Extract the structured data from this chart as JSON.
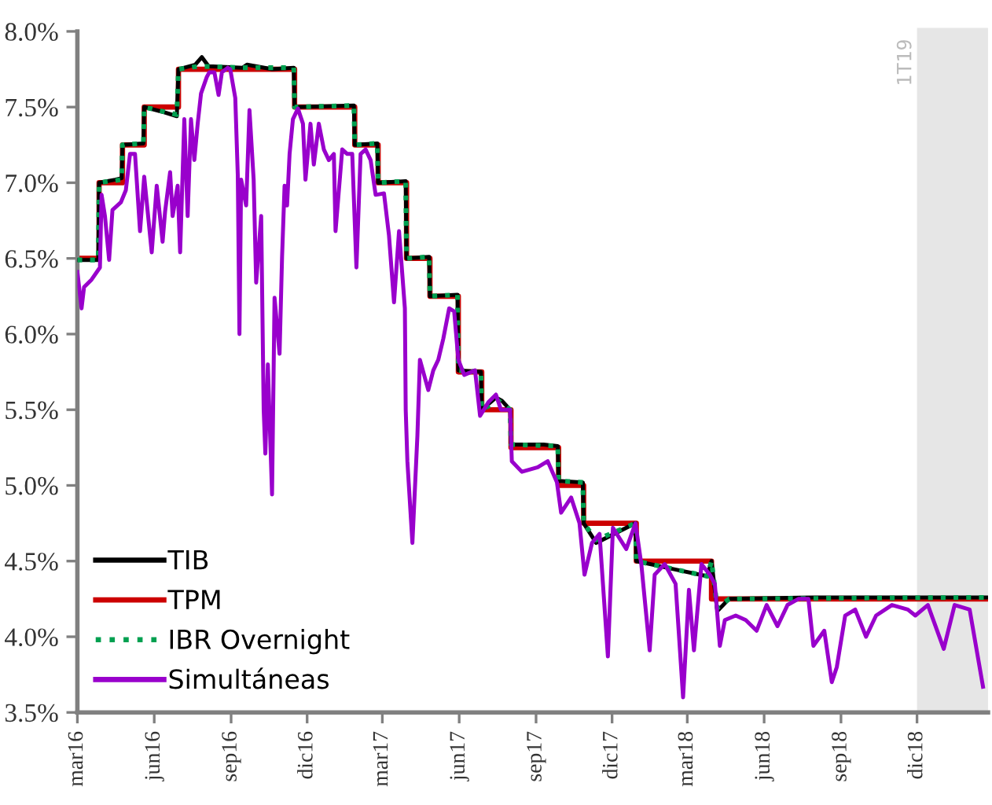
{
  "chart_data": {
    "type": "line",
    "xlim": [
      "2016-03-01",
      "2019-02-24"
    ],
    "ylim": [
      3.5,
      8.0
    ],
    "yticks": [
      {
        "value": 3.5,
        "label": "3.5%"
      },
      {
        "value": 4.0,
        "label": "4.0%"
      },
      {
        "value": 4.5,
        "label": "4.5%"
      },
      {
        "value": 5.0,
        "label": "5.0%"
      },
      {
        "value": 5.5,
        "label": "5.5%"
      },
      {
        "value": 6.0,
        "label": "6.0%"
      },
      {
        "value": 6.5,
        "label": "6.5%"
      },
      {
        "value": 7.0,
        "label": "7.0%"
      },
      {
        "value": 7.5,
        "label": "7.5%"
      },
      {
        "value": 8.0,
        "label": "8.0%"
      }
    ],
    "xticks": [
      {
        "value": "2016-03-01",
        "label": "mar16"
      },
      {
        "value": "2016-06-01",
        "label": "jun16"
      },
      {
        "value": "2016-09-01",
        "label": "sep16"
      },
      {
        "value": "2016-12-01",
        "label": "dic16"
      },
      {
        "value": "2017-03-01",
        "label": "mar17"
      },
      {
        "value": "2017-06-01",
        "label": "jun17"
      },
      {
        "value": "2017-09-01",
        "label": "sep17"
      },
      {
        "value": "2017-12-01",
        "label": "dic17"
      },
      {
        "value": "2018-03-01",
        "label": "mar18"
      },
      {
        "value": "2018-06-01",
        "label": "jun18"
      },
      {
        "value": "2018-09-01",
        "label": "sep18"
      },
      {
        "value": "2018-12-01",
        "label": "dic18"
      }
    ],
    "grid": false,
    "legend": "bottom left",
    "bands": [
      {
        "axis": "x",
        "from": "2018-12-01",
        "to": "2019-02-24",
        "label": "1T19",
        "color": "#e6e6e6"
      }
    ],
    "series": [
      {
        "name": "TIB",
        "color": "#000000",
        "line_style": "solid",
        "x": [
          "2016-03-01",
          "2016-03-26",
          "2016-03-27",
          "2016-04-15",
          "2016-04-23",
          "2016-04-24",
          "2016-05-19",
          "2016-05-20",
          "2016-06-10",
          "2016-06-28",
          "2016-06-30",
          "2016-07-20",
          "2016-07-28",
          "2016-08-05",
          "2016-09-15",
          "2016-09-20",
          "2016-10-20",
          "2016-11-15",
          "2016-11-16",
          "2017-01-26",
          "2017-01-27",
          "2017-02-23",
          "2017-02-24",
          "2017-03-29",
          "2017-03-30",
          "2017-04-26",
          "2017-04-27",
          "2017-05-30",
          "2017-05-31",
          "2017-06-27",
          "2017-06-28",
          "2017-07-15",
          "2017-07-22",
          "2017-08-01",
          "2017-08-02",
          "2017-09-10",
          "2017-09-27",
          "2017-09-28",
          "2017-10-27",
          "2017-10-28",
          "2017-11-12",
          "2017-12-29",
          "2017-12-30",
          "2018-02-10",
          "2018-03-25",
          "2018-03-30",
          "2018-04-06",
          "2018-04-20",
          "2018-08-01",
          "2019-02-24"
        ],
        "values": [
          6.49,
          6.49,
          7.0,
          7.02,
          7.03,
          7.25,
          7.26,
          7.5,
          7.47,
          7.44,
          7.75,
          7.78,
          7.83,
          7.77,
          7.76,
          7.78,
          7.75,
          7.76,
          7.5,
          7.51,
          7.25,
          7.26,
          7.0,
          7.01,
          6.5,
          6.51,
          6.25,
          6.26,
          5.76,
          5.75,
          5.5,
          5.58,
          5.56,
          5.5,
          5.27,
          5.27,
          5.26,
          5.03,
          5.02,
          4.75,
          4.62,
          4.75,
          4.5,
          4.45,
          4.4,
          4.5,
          4.17,
          4.25,
          4.26,
          4.26
        ]
      },
      {
        "name": "TPM",
        "type": "step",
        "color": "#cc0000",
        "line_style": "solid",
        "x": [
          "2016-03-01",
          "2016-03-27",
          "2016-04-24",
          "2016-05-20",
          "2016-06-30",
          "2016-11-16",
          "2017-01-27",
          "2017-02-24",
          "2017-03-30",
          "2017-04-27",
          "2017-05-31",
          "2017-06-28",
          "2017-08-02",
          "2017-09-28",
          "2017-10-28",
          "2017-12-30",
          "2018-03-30",
          "2019-02-24"
        ],
        "values": [
          6.5,
          7.0,
          7.25,
          7.5,
          7.75,
          7.5,
          7.25,
          7.0,
          6.5,
          6.25,
          5.75,
          5.5,
          5.25,
          5.0,
          4.75,
          4.5,
          4.25,
          4.25
        ]
      },
      {
        "name": "IBR Overnight",
        "color": "#00a050",
        "line_style": "dotted",
        "x": [
          "2016-03-01",
          "2016-03-26",
          "2016-03-27",
          "2016-04-23",
          "2016-04-24",
          "2016-05-19",
          "2016-05-20",
          "2016-06-28",
          "2016-06-30",
          "2016-07-25",
          "2016-09-15",
          "2016-11-15",
          "2016-11-16",
          "2017-01-26",
          "2017-01-27",
          "2017-02-23",
          "2017-02-24",
          "2017-03-29",
          "2017-03-30",
          "2017-04-26",
          "2017-04-27",
          "2017-05-30",
          "2017-05-31",
          "2017-06-27",
          "2017-06-28",
          "2017-07-18",
          "2017-08-01",
          "2017-08-02",
          "2017-09-27",
          "2017-09-28",
          "2017-10-27",
          "2017-10-28",
          "2017-11-12",
          "2017-12-29",
          "2017-12-30",
          "2018-03-25",
          "2018-03-30",
          "2018-04-06",
          "2018-04-20",
          "2019-02-24"
        ],
        "values": [
          6.49,
          6.49,
          7.0,
          7.02,
          7.25,
          7.26,
          7.5,
          7.45,
          7.75,
          7.77,
          7.76,
          7.76,
          7.5,
          7.51,
          7.25,
          7.26,
          7.0,
          7.01,
          6.5,
          6.51,
          6.25,
          6.26,
          5.76,
          5.75,
          5.5,
          5.56,
          5.5,
          5.27,
          5.26,
          5.03,
          5.02,
          4.75,
          4.64,
          4.75,
          4.5,
          4.4,
          4.5,
          4.19,
          4.25,
          4.26
        ]
      },
      {
        "name": "Simultáneas",
        "color": "#9900cc",
        "line_style": "solid",
        "x": [
          "2016-03-01",
          "2016-03-06",
          "2016-03-09",
          "2016-03-18",
          "2016-03-28",
          "2016-03-30",
          "2016-04-03",
          "2016-04-08",
          "2016-04-12",
          "2016-04-22",
          "2016-04-28",
          "2016-05-03",
          "2016-05-09",
          "2016-05-15",
          "2016-05-20",
          "2016-05-29",
          "2016-06-04",
          "2016-06-11",
          "2016-06-14",
          "2016-06-20",
          "2016-06-23",
          "2016-06-29",
          "2016-07-02",
          "2016-07-07",
          "2016-07-11",
          "2016-07-15",
          "2016-07-19",
          "2016-07-23",
          "2016-07-27",
          "2016-08-03",
          "2016-08-06",
          "2016-08-12",
          "2016-08-17",
          "2016-08-21",
          "2016-08-28",
          "2016-08-31",
          "2016-09-06",
          "2016-09-09",
          "2016-09-11",
          "2016-09-13",
          "2016-09-19",
          "2016-09-23",
          "2016-09-28",
          "2016-10-01",
          "2016-10-07",
          "2016-10-10",
          "2016-10-12",
          "2016-10-15",
          "2016-10-20",
          "2016-10-23",
          "2016-10-29",
          "2016-11-01",
          "2016-11-04",
          "2016-11-07",
          "2016-11-10",
          "2016-11-14",
          "2016-11-20",
          "2016-11-26",
          "2016-11-29",
          "2016-12-05",
          "2016-12-09",
          "2016-12-15",
          "2016-12-21",
          "2016-12-27",
          "2017-01-02",
          "2017-01-04",
          "2017-01-12",
          "2017-01-18",
          "2017-01-24",
          "2017-01-29",
          "2017-02-03",
          "2017-02-09",
          "2017-02-15",
          "2017-02-21",
          "2017-03-03",
          "2017-03-09",
          "2017-03-15",
          "2017-03-21",
          "2017-03-28",
          "2017-03-29",
          "2017-03-31",
          "2017-04-06",
          "2017-04-12",
          "2017-04-15",
          "2017-04-25",
          "2017-05-01",
          "2017-05-07",
          "2017-05-13",
          "2017-05-20",
          "2017-05-26",
          "2017-05-31",
          "2017-06-07",
          "2017-06-20",
          "2017-06-26",
          "2017-07-06",
          "2017-07-15",
          "2017-07-21",
          "2017-08-01",
          "2017-08-03",
          "2017-08-15",
          "2017-09-03",
          "2017-09-15",
          "2017-09-26",
          "2017-10-01",
          "2017-10-13",
          "2017-10-23",
          "2017-10-29",
          "2017-11-07",
          "2017-11-16",
          "2017-11-26",
          "2017-12-02",
          "2017-12-18",
          "2017-12-29",
          "2018-01-05",
          "2018-01-15",
          "2018-01-21",
          "2018-02-02",
          "2018-02-15",
          "2018-02-24",
          "2018-03-03",
          "2018-03-09",
          "2018-03-18",
          "2018-03-28",
          "2018-04-03",
          "2018-04-09",
          "2018-04-15",
          "2018-04-28",
          "2018-05-10",
          "2018-05-23",
          "2018-06-04",
          "2018-06-17",
          "2018-06-29",
          "2018-07-12",
          "2018-07-24",
          "2018-07-30",
          "2018-08-12",
          "2018-08-21",
          "2018-08-27",
          "2018-09-06",
          "2018-09-18",
          "2018-10-01",
          "2018-10-13",
          "2018-11-01",
          "2018-11-20",
          "2018-11-29",
          "2018-12-14",
          "2019-01-02",
          "2019-01-15",
          "2019-02-02",
          "2019-02-18"
        ],
        "values": [
          6.41,
          6.17,
          6.31,
          6.36,
          6.44,
          6.92,
          6.78,
          6.49,
          6.82,
          6.87,
          6.95,
          7.19,
          7.19,
          6.68,
          7.04,
          6.54,
          6.98,
          6.61,
          6.81,
          7.07,
          6.78,
          6.98,
          6.54,
          7.42,
          6.78,
          7.42,
          7.15,
          7.39,
          7.59,
          7.7,
          7.73,
          7.73,
          7.58,
          7.73,
          7.76,
          7.75,
          7.56,
          7.05,
          6.0,
          7.02,
          6.85,
          7.48,
          7.02,
          6.34,
          6.78,
          5.5,
          5.21,
          5.8,
          4.94,
          6.24,
          5.87,
          6.51,
          6.98,
          6.85,
          7.19,
          7.42,
          7.49,
          7.39,
          7.02,
          7.39,
          7.12,
          7.39,
          7.22,
          7.15,
          7.19,
          6.68,
          7.22,
          7.19,
          7.19,
          6.44,
          7.19,
          7.22,
          7.15,
          6.92,
          6.93,
          6.65,
          6.21,
          6.68,
          6.17,
          5.5,
          5.16,
          4.62,
          5.33,
          5.83,
          5.63,
          5.76,
          5.83,
          5.97,
          6.17,
          6.15,
          5.83,
          5.73,
          5.76,
          5.46,
          5.55,
          5.6,
          5.5,
          5.5,
          5.16,
          5.09,
          5.12,
          5.16,
          5.02,
          4.82,
          4.92,
          4.75,
          4.41,
          4.62,
          4.68,
          3.87,
          4.72,
          4.58,
          4.75,
          4.48,
          3.91,
          4.41,
          4.48,
          4.35,
          3.6,
          4.31,
          3.91,
          4.48,
          4.41,
          4.35,
          3.94,
          4.11,
          4.14,
          4.11,
          4.04,
          4.21,
          4.07,
          4.21,
          4.25,
          4.25,
          3.94,
          4.04,
          3.7,
          3.8,
          4.14,
          4.18,
          4.0,
          4.14,
          4.21,
          4.18,
          4.14,
          4.21,
          3.92,
          4.21,
          4.18,
          3.67
        ]
      }
    ]
  }
}
